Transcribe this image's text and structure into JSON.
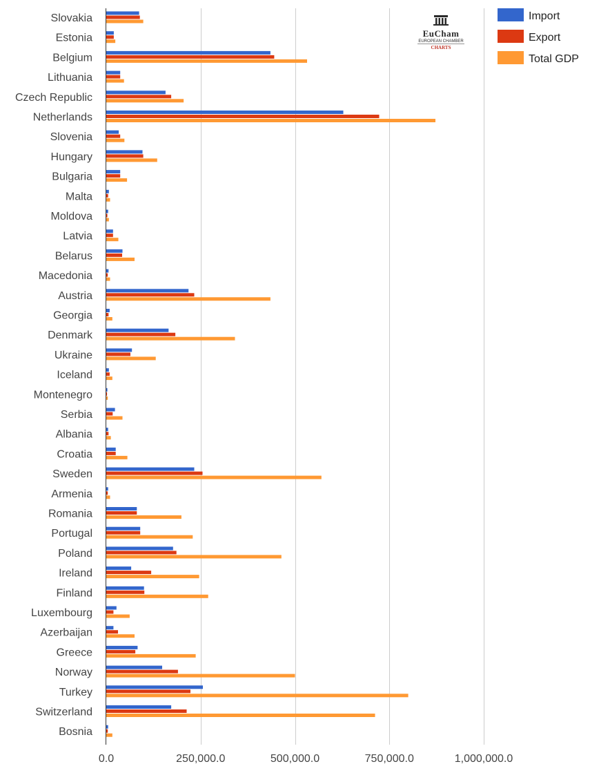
{
  "logo": {
    "name": "EuCham",
    "subtitle": "EUROPEAN CHAMBER",
    "tag": "CHARTS"
  },
  "colors": {
    "import": "#3366cc",
    "export": "#dc3912",
    "gdp": "#ff9933",
    "grid": "#cccccc",
    "axis": "#333333"
  },
  "chart_data": {
    "type": "bar",
    "orientation": "horizontal",
    "title": "",
    "xlabel": "",
    "ylabel": "",
    "xlim": [
      0,
      1000000
    ],
    "x_ticks": [
      0,
      250000,
      500000,
      750000,
      1000000
    ],
    "x_tick_labels": [
      "0.0",
      "250,000.0",
      "500,000.0",
      "750,000.0",
      "1,000,000.0"
    ],
    "legend_position": "top-right",
    "categories": [
      "Slovakia",
      "Estonia",
      "Belgium",
      "Lithuania",
      "Czech Republic",
      "Netherlands",
      "Slovenia",
      "Hungary",
      "Bulgaria",
      "Malta",
      "Moldova",
      "Latvia",
      "Belarus",
      "Macedonia",
      "Austria",
      "Georgia",
      "Denmark",
      "Ukraine",
      "Iceland",
      "Montenegro",
      "Serbia",
      "Albania",
      "Croatia",
      "Sweden",
      "Armenia",
      "Romania",
      "Portugal",
      "Poland",
      "Ireland",
      "Finland",
      "Luxembourg",
      "Azerbaijan",
      "Greece",
      "Norway",
      "Turkey",
      "Switzerland",
      "Bosnia"
    ],
    "series": [
      {
        "name": "Import",
        "color": "#3366cc",
        "values": [
          87000,
          20000,
          435000,
          37000,
          157000,
          628000,
          33000,
          96000,
          37000,
          7000,
          5000,
          18000,
          43000,
          6000,
          218000,
          9000,
          165000,
          68000,
          7000,
          3000,
          23000,
          5000,
          25000,
          233000,
          5000,
          81000,
          90000,
          177000,
          66000,
          100000,
          27000,
          19000,
          83000,
          148000,
          256000,
          172000,
          5000
        ]
      },
      {
        "name": "Export",
        "color": "#dc3912",
        "values": [
          89000,
          20000,
          445000,
          37000,
          172000,
          723000,
          37000,
          98000,
          37000,
          5000,
          3000,
          18000,
          42000,
          4000,
          233000,
          6000,
          183000,
          64000,
          9000,
          2000,
          17000,
          6000,
          25000,
          255000,
          4000,
          81000,
          90000,
          186000,
          119000,
          101000,
          19000,
          31000,
          77000,
          190000,
          223000,
          213000,
          4000
        ]
      },
      {
        "name": "Total GDP",
        "color": "#ff9933",
        "values": [
          98000,
          24000,
          532000,
          47000,
          205000,
          872000,
          48000,
          135000,
          55000,
          10000,
          7000,
          32000,
          75000,
          10000,
          435000,
          16000,
          341000,
          131000,
          16000,
          4000,
          43000,
          12000,
          56000,
          570000,
          10000,
          199000,
          229000,
          464000,
          246000,
          270000,
          62000,
          75000,
          237000,
          500000,
          800000,
          712000,
          16000
        ]
      }
    ]
  }
}
